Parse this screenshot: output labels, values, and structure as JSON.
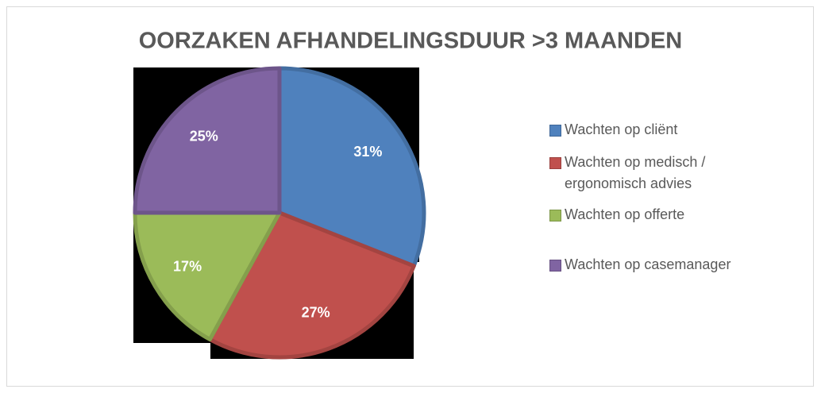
{
  "chart_data": {
    "type": "pie",
    "title": "OORZAKEN AFHANDELINGSDUUR >3 MAANDEN",
    "categories": [
      "Wachten op cliënt",
      "Wachten op medisch / ergonomisch advies",
      "Wachten op offerte",
      "Wachten op casemanager"
    ],
    "values": [
      31,
      27,
      17,
      25
    ],
    "value_labels": [
      "31%",
      "27%",
      "17%",
      "25%"
    ],
    "colors": [
      "#4f81bd",
      "#c0504d",
      "#9bbb59",
      "#8064a2"
    ],
    "legend": "right"
  }
}
